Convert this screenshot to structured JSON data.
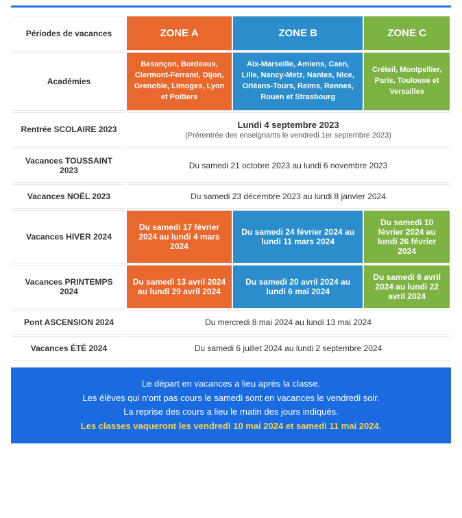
{
  "colors": {
    "zone_a": "#e8682d",
    "zone_b": "#2b8dcb",
    "zone_c": "#7cb342",
    "footer_bg": "#1a6be0",
    "footer_highlight": "#ffd24d",
    "top_line": "#1a73e8"
  },
  "header": {
    "periods_label": "Périodes de vacances",
    "zone_a": "ZONE A",
    "zone_b": "ZONE B",
    "zone_c": "ZONE C"
  },
  "academies": {
    "label": "Académies",
    "zone_a": "Besançon, Bordeaux, Clermont-Ferrand, Dijon, Grenoble, Limoges, Lyon et Poitiers",
    "zone_b": "Aix-Marseille, Amiens, Caen, Lille, Nancy-Metz, Nantes, Nice, Orléans-Tours, Reims, Rennes, Rouen et Strasbourg",
    "zone_c": "Créteil, Montpellier, Paris, Toulouse et Versailles"
  },
  "rows": {
    "rentree": {
      "label": "Rentrée SCOLAIRE 2023",
      "main": "Lundi 4 septembre 2023",
      "sub": "(Prérentrée des enseignants le vendredi 1er septembre 2023)"
    },
    "toussaint": {
      "label": "Vacances TOUSSAINT 2023",
      "text": "Du samedi 21 octobre 2023 au lundi 6 novembre 2023"
    },
    "noel": {
      "label": "Vacances NOËL 2023",
      "text": "Du samedi 23 décembre 2023 au lundi 8 janvier 2024"
    },
    "hiver": {
      "label": "Vacances HIVER 2024",
      "zone_a": "Du samedi 17 février 2024 au lundi 4 mars 2024",
      "zone_b": "Du samedi 24 février 2024 au lundi 11 mars 2024",
      "zone_c": "Du samedi 10 février 2024 au lundi 26 février 2024"
    },
    "printemps": {
      "label": "Vacances PRINTEMPS 2024",
      "zone_a": "Du samedi 13 avril 2024 au lundi 29 avril 2024",
      "zone_b": "Du samedi 20 avril 2024 au lundi 6 mai 2024",
      "zone_c": "Du samedi 6 avril 2024 au lundi 22 avril 2024"
    },
    "ascension": {
      "label": "Pont ASCENSION 2024",
      "text": "Du mercredi 8 mai 2024 au lundi 13 mai 2024"
    },
    "ete": {
      "label": "Vacances ÉTÉ 2024",
      "text": "Du samedi 6 juillet 2024 au lundi 2 septembre 2024"
    }
  },
  "footer": {
    "line1": "Le départ en vacances a lieu après la classe.",
    "line2": "Les élèves qui n'ont pas cours le samedi sont en vacances le vendredi soir.",
    "line3": "La reprise des cours a lieu le matin des jours indiqués.",
    "line4": "Les classes vaqueront les vendredi 10 mai 2024 et samedi 11 mai 2024."
  }
}
